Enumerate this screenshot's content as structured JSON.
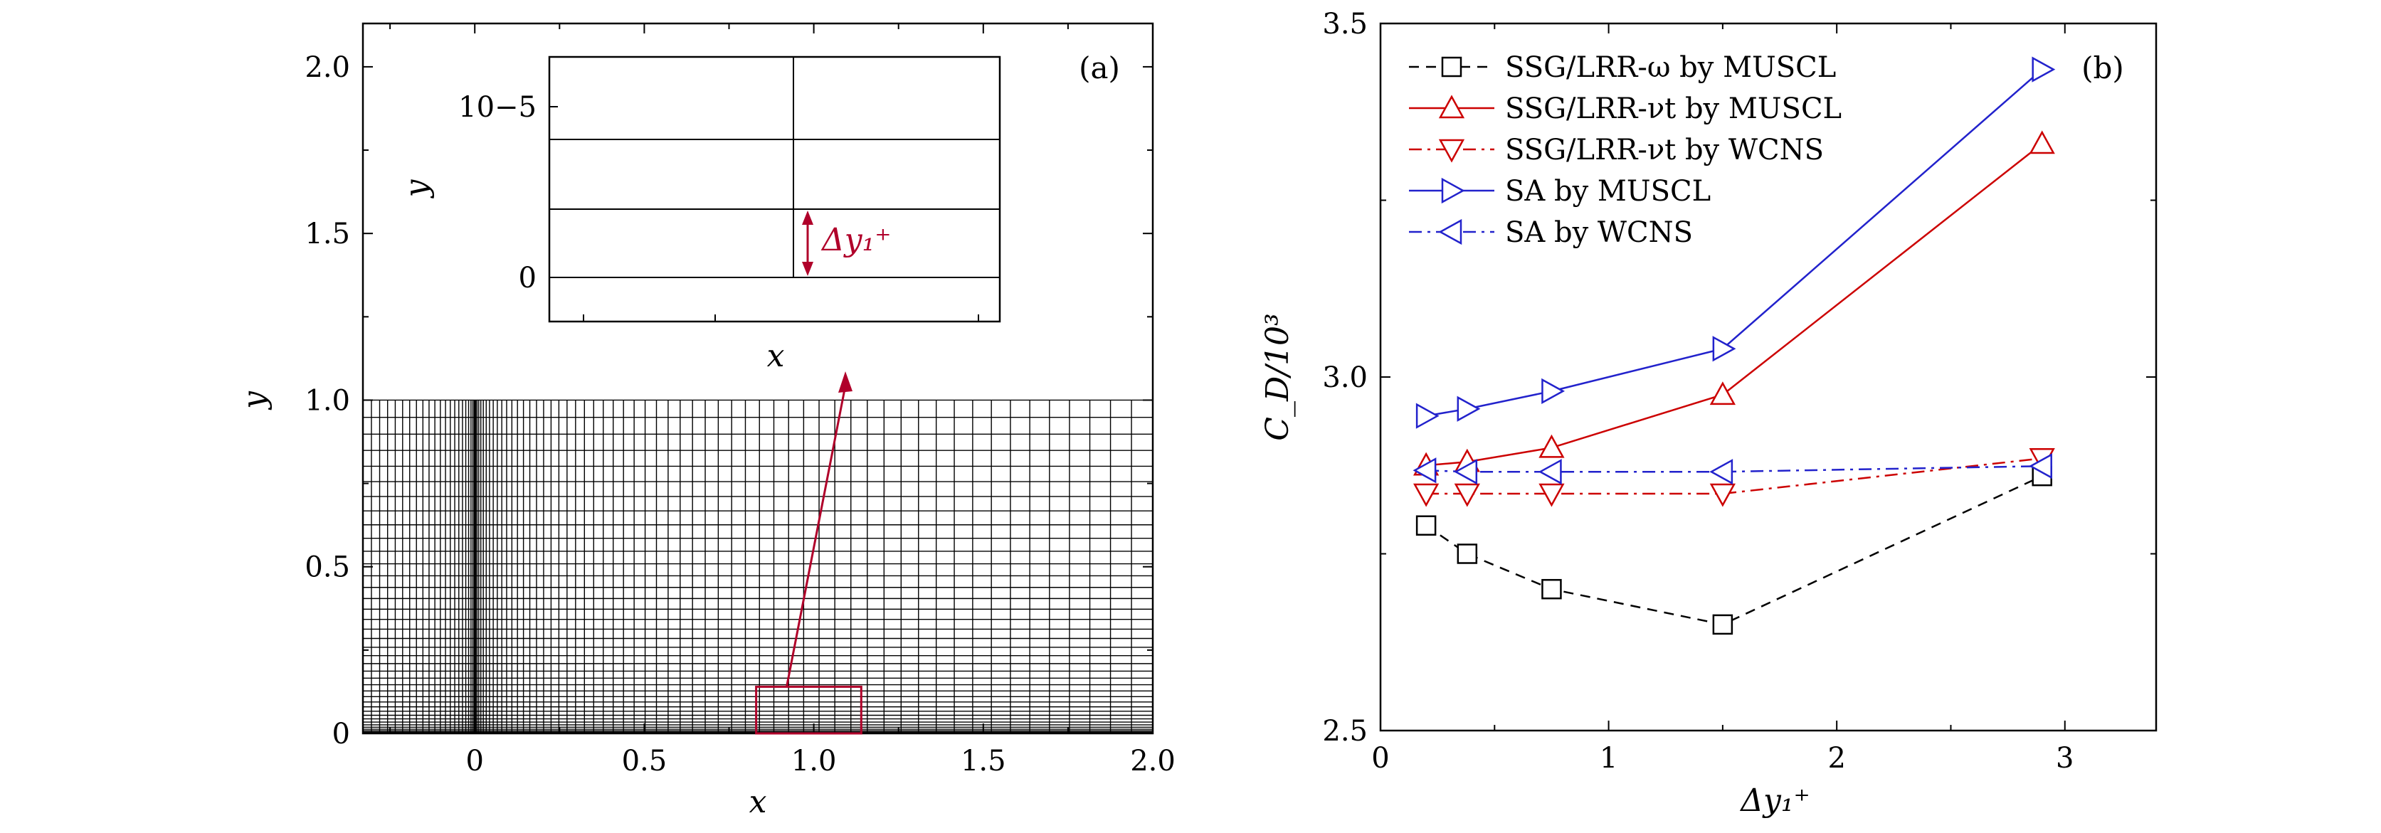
{
  "chart_data": [
    {
      "type": "line",
      "panel_label": "(a)",
      "xlabel": "x",
      "ylabel": "y",
      "xlim": [
        -0.33,
        2.0
      ],
      "ylim": [
        0,
        2.13
      ],
      "x_ticks": [
        "0",
        "0.5",
        "1.0",
        "1.5",
        "2.0"
      ],
      "y_ticks": [
        "0",
        "0.5",
        "1.0",
        "1.5",
        "2.0"
      ],
      "grid_top_y": 1.0,
      "highlight_box": {
        "x": [
          0.83,
          1.14
        ],
        "y": [
          0,
          0.14
        ]
      },
      "inset": {
        "xlabel": "x",
        "ylabel": "y",
        "y_ticks": [
          "0",
          "10−5"
        ],
        "annotation": "Δy₁⁺"
      }
    },
    {
      "type": "line",
      "panel_label": "(b)",
      "xlabel": "Δy₁⁺",
      "ylabel": "C_D/10³",
      "xlim": [
        0,
        3.4
      ],
      "ylim": [
        2.5,
        3.5
      ],
      "x_ticks": [
        "0",
        "1",
        "2",
        "3"
      ],
      "y_ticks": [
        "2.5",
        "3.0",
        "3.5"
      ],
      "legend_position": "top-left",
      "x": [
        0.2,
        0.38,
        0.75,
        1.5,
        2.9
      ],
      "series": [
        {
          "name": "SSG/LRR-ω by MUSCL",
          "values": [
            2.79,
            2.75,
            2.7,
            2.65,
            2.86
          ],
          "color": "#000000",
          "marker": "square",
          "dash": "dashed"
        },
        {
          "name": "SSG/LRR-νt by MUSCL",
          "values": [
            2.875,
            2.88,
            2.9,
            2.975,
            3.33
          ],
          "color": "#cc0000",
          "marker": "triangle-up",
          "dash": "solid"
        },
        {
          "name": "SSG/LRR-νt by WCNS",
          "values": [
            2.835,
            2.835,
            2.835,
            2.835,
            2.885
          ],
          "color": "#cc0000",
          "marker": "triangle-down",
          "dash": "dashdot"
        },
        {
          "name": "SA by MUSCL",
          "values": [
            2.945,
            2.955,
            2.98,
            3.04,
            3.435
          ],
          "color": "#2222cc",
          "marker": "triangle-right",
          "dash": "solid"
        },
        {
          "name": "SA by WCNS",
          "values": [
            2.868,
            2.866,
            2.866,
            2.866,
            2.874
          ],
          "color": "#2222cc",
          "marker": "triangle-left",
          "dash": "dashdot"
        }
      ]
    }
  ]
}
